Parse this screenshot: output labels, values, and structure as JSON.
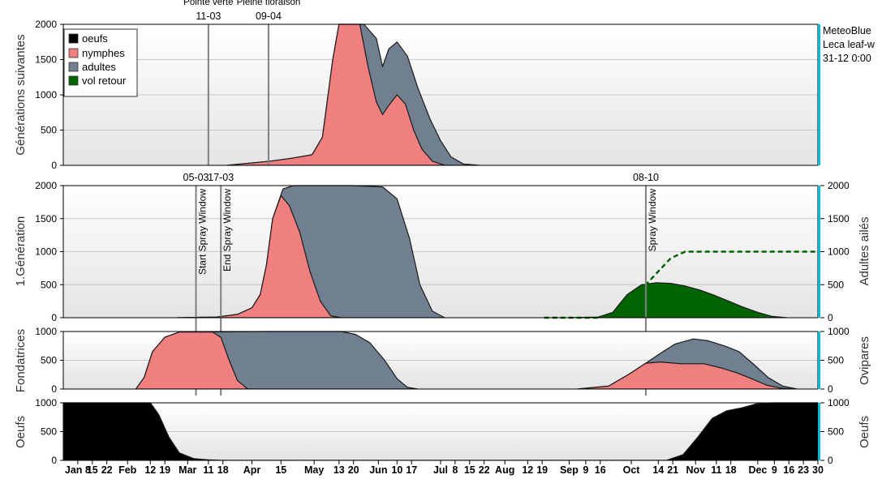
{
  "colors": {
    "oeufs": "#000000",
    "nymphes": "#f08080",
    "adultes": "#708090",
    "vol_retour": "#006400",
    "marker_line": "#808080",
    "right_axis_accent": "#00bcd4",
    "grid": "#c8c8c8"
  },
  "info_box": [
    "MeteoBlue",
    "Leca leaf-w",
    "31-12 0:00"
  ],
  "x_axis": {
    "start": "2024-01-01",
    "end": "2024-12-30",
    "ticks": [
      {
        "date": "2024-01-08",
        "label": "Jan 8"
      },
      {
        "date": "2024-01-15",
        "label": "15"
      },
      {
        "date": "2024-01-22",
        "label": "22"
      },
      {
        "date": "2024-02-01",
        "label": "Feb"
      },
      {
        "date": "2024-02-12",
        "label": "12"
      },
      {
        "date": "2024-02-19",
        "label": "19"
      },
      {
        "date": "2024-03-01",
        "label": "Mar"
      },
      {
        "date": "2024-03-11",
        "label": "11"
      },
      {
        "date": "2024-03-18",
        "label": "18"
      },
      {
        "date": "2024-04-01",
        "label": "Apr"
      },
      {
        "date": "2024-04-15",
        "label": "15"
      },
      {
        "date": "2024-05-01",
        "label": "May"
      },
      {
        "date": "2024-05-13",
        "label": "13"
      },
      {
        "date": "2024-05-20",
        "label": "20"
      },
      {
        "date": "2024-06-01",
        "label": "Jun"
      },
      {
        "date": "2024-06-10",
        "label": "10"
      },
      {
        "date": "2024-06-17",
        "label": "17"
      },
      {
        "date": "2024-07-01",
        "label": "Jul"
      },
      {
        "date": "2024-07-08",
        "label": "8"
      },
      {
        "date": "2024-07-15",
        "label": "15"
      },
      {
        "date": "2024-07-22",
        "label": "22"
      },
      {
        "date": "2024-08-01",
        "label": "Aug"
      },
      {
        "date": "2024-08-12",
        "label": "12"
      },
      {
        "date": "2024-08-19",
        "label": "19"
      },
      {
        "date": "2024-09-01",
        "label": "Sep"
      },
      {
        "date": "2024-09-09",
        "label": "9"
      },
      {
        "date": "2024-09-16",
        "label": "16"
      },
      {
        "date": "2024-10-01",
        "label": "Oct"
      },
      {
        "date": "2024-10-14",
        "label": "14"
      },
      {
        "date": "2024-10-21",
        "label": "21"
      },
      {
        "date": "2024-11-01",
        "label": "Nov"
      },
      {
        "date": "2024-11-11",
        "label": "11"
      },
      {
        "date": "2024-11-18",
        "label": "18"
      },
      {
        "date": "2024-12-01",
        "label": "Dec"
      },
      {
        "date": "2024-12-09",
        "label": "9"
      },
      {
        "date": "2024-12-16",
        "label": "16"
      },
      {
        "date": "2024-12-23",
        "label": "23"
      },
      {
        "date": "2024-12-30",
        "label": "30"
      }
    ]
  },
  "chart_data": [
    {
      "id": "generations",
      "type": "area",
      "ylabel": "Générations suivantes",
      "ylim": [
        0,
        2000
      ],
      "yticks": [
        0,
        500,
        1000,
        1500,
        2000
      ],
      "grid": true,
      "legend": {
        "placement": "top-left",
        "entries": [
          {
            "key": "oeufs",
            "label": "oeufs"
          },
          {
            "key": "nymphes",
            "label": "nymphes"
          },
          {
            "key": "adultes",
            "label": "adultes"
          },
          {
            "key": "vol_retour",
            "label": "vol retour"
          }
        ]
      },
      "markers": [
        {
          "date": "2024-03-11",
          "label": "Pointe verte",
          "date_label": "11-03"
        },
        {
          "date": "2024-04-09",
          "label": "Pleine floraison",
          "date_label": "09-04"
        }
      ],
      "series": [
        {
          "key": "adultes",
          "points": [
            [
              "2024-03-20",
              0
            ],
            [
              "2024-04-10",
              60
            ],
            [
              "2024-04-20",
              100
            ],
            [
              "2024-04-30",
              150
            ],
            [
              "2024-05-05",
              400
            ],
            [
              "2024-05-10",
              1500
            ],
            [
              "2024-05-13",
              2200
            ],
            [
              "2024-05-25",
              2200
            ],
            [
              "2024-05-31",
              1800
            ],
            [
              "2024-06-03",
              1400
            ],
            [
              "2024-06-06",
              1650
            ],
            [
              "2024-06-10",
              1750
            ],
            [
              "2024-06-15",
              1550
            ],
            [
              "2024-06-20",
              1100
            ],
            [
              "2024-06-26",
              650
            ],
            [
              "2024-07-01",
              350
            ],
            [
              "2024-07-06",
              120
            ],
            [
              "2024-07-12",
              20
            ],
            [
              "2024-07-20",
              0
            ]
          ]
        },
        {
          "key": "nymphes",
          "points": [
            [
              "2024-03-20",
              0
            ],
            [
              "2024-04-10",
              60
            ],
            [
              "2024-04-20",
              100
            ],
            [
              "2024-04-30",
              150
            ],
            [
              "2024-05-05",
              400
            ],
            [
              "2024-05-10",
              1500
            ],
            [
              "2024-05-13",
              2200
            ],
            [
              "2024-05-23",
              2200
            ],
            [
              "2024-05-27",
              1400
            ],
            [
              "2024-05-31",
              900
            ],
            [
              "2024-06-03",
              720
            ],
            [
              "2024-06-06",
              850
            ],
            [
              "2024-06-10",
              1000
            ],
            [
              "2024-06-14",
              870
            ],
            [
              "2024-06-18",
              500
            ],
            [
              "2024-06-22",
              230
            ],
            [
              "2024-06-27",
              60
            ],
            [
              "2024-07-03",
              0
            ]
          ]
        }
      ]
    },
    {
      "id": "first-generation",
      "type": "area",
      "ylabel": "1.Génération",
      "ylabel_right": "Adultes ailés",
      "ylim": [
        0,
        2000
      ],
      "yticks": [
        0,
        500,
        1000,
        1500,
        2000
      ],
      "grid": true,
      "markers": [
        {
          "date": "2024-03-05",
          "label": "Start Spray Window",
          "date_label": "05-03"
        },
        {
          "date": "2024-03-17",
          "label": "End Spray Window",
          "date_label": "17-03"
        },
        {
          "date": "2024-10-08",
          "label": "Spray Window",
          "date_label": "08-10"
        }
      ],
      "series": [
        {
          "key": "adultes",
          "points": [
            [
              "2024-02-25",
              0
            ],
            [
              "2024-03-15",
              10
            ],
            [
              "2024-03-25",
              50
            ],
            [
              "2024-04-01",
              150
            ],
            [
              "2024-04-05",
              350
            ],
            [
              "2024-04-08",
              800
            ],
            [
              "2024-04-11",
              1500
            ],
            [
              "2024-04-16",
              1950
            ],
            [
              "2024-04-21",
              2000
            ],
            [
              "2024-05-20",
              2000
            ],
            [
              "2024-06-03",
              1980
            ],
            [
              "2024-06-10",
              1800
            ],
            [
              "2024-06-16",
              1200
            ],
            [
              "2024-06-21",
              500
            ],
            [
              "2024-06-27",
              100
            ],
            [
              "2024-07-03",
              0
            ]
          ]
        },
        {
          "key": "nymphes",
          "points": [
            [
              "2024-02-25",
              0
            ],
            [
              "2024-03-15",
              10
            ],
            [
              "2024-03-25",
              50
            ],
            [
              "2024-04-01",
              150
            ],
            [
              "2024-04-05",
              350
            ],
            [
              "2024-04-08",
              800
            ],
            [
              "2024-04-11",
              1500
            ],
            [
              "2024-04-15",
              1850
            ],
            [
              "2024-04-19",
              1700
            ],
            [
              "2024-04-24",
              1300
            ],
            [
              "2024-04-29",
              700
            ],
            [
              "2024-05-04",
              250
            ],
            [
              "2024-05-09",
              30
            ],
            [
              "2024-05-14",
              0
            ]
          ]
        },
        {
          "key": "vol_retour",
          "points": [
            [
              "2024-09-01",
              0
            ],
            [
              "2024-09-15",
              10
            ],
            [
              "2024-09-22",
              80
            ],
            [
              "2024-09-29",
              350
            ],
            [
              "2024-10-06",
              500
            ],
            [
              "2024-10-13",
              530
            ],
            [
              "2024-10-20",
              520
            ],
            [
              "2024-10-27",
              480
            ],
            [
              "2024-11-03",
              420
            ],
            [
              "2024-11-10",
              340
            ],
            [
              "2024-11-17",
              250
            ],
            [
              "2024-11-24",
              160
            ],
            [
              "2024-12-01",
              80
            ],
            [
              "2024-12-08",
              20
            ],
            [
              "2024-12-15",
              0
            ]
          ]
        },
        {
          "key": "vol_retour_cumul",
          "style": "dashed",
          "axis": "right",
          "points": [
            [
              "2024-08-20",
              0
            ],
            [
              "2024-09-15",
              0
            ],
            [
              "2024-09-25",
              60
            ],
            [
              "2024-10-02",
              300
            ],
            [
              "2024-10-08",
              500
            ],
            [
              "2024-10-14",
              700
            ],
            [
              "2024-10-20",
              900
            ],
            [
              "2024-10-27",
              1000
            ],
            [
              "2024-12-30",
              1000
            ]
          ]
        }
      ]
    },
    {
      "id": "fondatrices",
      "type": "area",
      "ylabel": "Fondatrices",
      "ylabel_right": "Ovipares",
      "ylim": [
        0,
        1000
      ],
      "yticks": [
        0,
        500,
        1000
      ],
      "grid": true,
      "series": [
        {
          "key": "adultes",
          "points": [
            [
              "2024-02-05",
              0
            ],
            [
              "2024-02-09",
              200
            ],
            [
              "2024-02-13",
              650
            ],
            [
              "2024-02-19",
              900
            ],
            [
              "2024-02-26",
              990
            ],
            [
              "2024-04-10",
              1000
            ],
            [
              "2024-05-14",
              1000
            ],
            [
              "2024-05-21",
              950
            ],
            [
              "2024-05-28",
              800
            ],
            [
              "2024-06-04",
              500
            ],
            [
              "2024-06-10",
              180
            ],
            [
              "2024-06-15",
              30
            ],
            [
              "2024-06-20",
              0
            ]
          ]
        },
        {
          "key": "nymphes",
          "points": [
            [
              "2024-02-05",
              0
            ],
            [
              "2024-02-09",
              200
            ],
            [
              "2024-02-13",
              650
            ],
            [
              "2024-02-19",
              900
            ],
            [
              "2024-02-26",
              990
            ],
            [
              "2024-03-13",
              990
            ],
            [
              "2024-03-17",
              900
            ],
            [
              "2024-03-21",
              500
            ],
            [
              "2024-03-25",
              150
            ],
            [
              "2024-03-30",
              0
            ]
          ]
        },
        {
          "key": "adultes",
          "points": [
            [
              "2024-09-05",
              0
            ],
            [
              "2024-09-20",
              50
            ],
            [
              "2024-09-30",
              260
            ],
            [
              "2024-10-08",
              450
            ],
            [
              "2024-10-15",
              620
            ],
            [
              "2024-10-22",
              780
            ],
            [
              "2024-10-31",
              870
            ],
            [
              "2024-11-07",
              840
            ],
            [
              "2024-11-15",
              750
            ],
            [
              "2024-11-22",
              650
            ],
            [
              "2024-11-29",
              430
            ],
            [
              "2024-12-06",
              200
            ],
            [
              "2024-12-13",
              50
            ],
            [
              "2024-12-20",
              0
            ]
          ]
        },
        {
          "key": "nymphes",
          "points": [
            [
              "2024-09-05",
              0
            ],
            [
              "2024-09-20",
              50
            ],
            [
              "2024-09-30",
              260
            ],
            [
              "2024-10-08",
              450
            ],
            [
              "2024-10-15",
              470
            ],
            [
              "2024-10-25",
              440
            ],
            [
              "2024-11-05",
              440
            ],
            [
              "2024-11-14",
              360
            ],
            [
              "2024-11-21",
              280
            ],
            [
              "2024-11-28",
              180
            ],
            [
              "2024-12-05",
              70
            ],
            [
              "2024-12-12",
              15
            ],
            [
              "2024-12-18",
              0
            ]
          ]
        }
      ]
    },
    {
      "id": "oeufs",
      "type": "area",
      "ylabel": "Oeufs",
      "ylabel_right": "Oeufs",
      "ylim": [
        0,
        1000
      ],
      "yticks": [
        0,
        500,
        1000
      ],
      "grid": true,
      "series": [
        {
          "key": "oeufs",
          "points": [
            [
              "2024-01-01",
              1000
            ],
            [
              "2024-02-12",
              1000
            ],
            [
              "2024-02-16",
              800
            ],
            [
              "2024-02-21",
              400
            ],
            [
              "2024-02-26",
              130
            ],
            [
              "2024-03-04",
              30
            ],
            [
              "2024-03-11",
              8
            ],
            [
              "2024-03-18",
              0
            ],
            [
              "2024-10-18",
              0
            ],
            [
              "2024-10-26",
              100
            ],
            [
              "2024-11-02",
              400
            ],
            [
              "2024-11-09",
              730
            ],
            [
              "2024-11-16",
              860
            ],
            [
              "2024-11-23",
              910
            ],
            [
              "2024-11-30",
              980
            ],
            [
              "2024-12-08",
              1000
            ],
            [
              "2024-12-30",
              1000
            ]
          ]
        }
      ]
    }
  ]
}
